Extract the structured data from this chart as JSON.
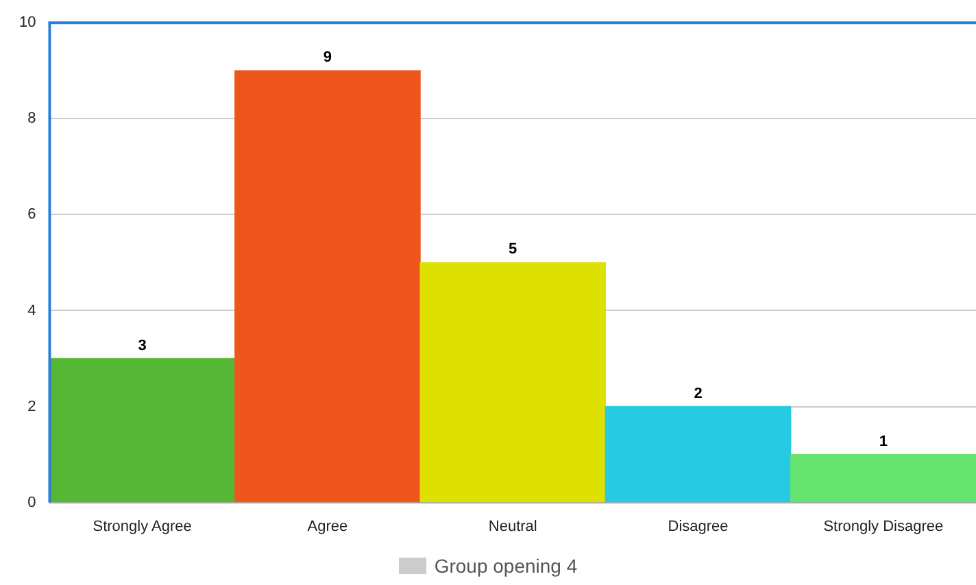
{
  "chart_data": {
    "type": "bar",
    "categories": [
      "Strongly Agree",
      "Agree",
      "Neutral",
      "Disagree",
      "Strongly Disagree"
    ],
    "series": [
      {
        "name": "Group opening 4",
        "color": "#cccccc",
        "colors": [
          "#56b635",
          "#ee561e",
          "#dde000",
          "#26cbe3",
          "#66e36f"
        ],
        "values": [
          3,
          9,
          5,
          2,
          1
        ]
      }
    ],
    "ylim": [
      0,
      10
    ],
    "yticks": [
      0,
      2,
      4,
      6,
      8,
      10
    ],
    "grid": "y",
    "legend": "bottom",
    "data_labels": true
  }
}
